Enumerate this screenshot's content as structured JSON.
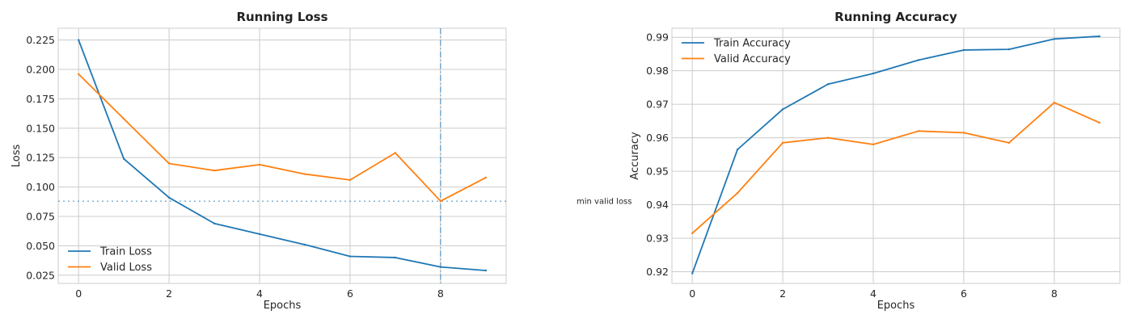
{
  "colors": {
    "train": "#1f77b4",
    "valid": "#ff7f0e",
    "grid": "#cccccc",
    "background": "#ffffff"
  },
  "chart_data": [
    {
      "type": "line",
      "title": "Running Loss",
      "xlabel": "Epochs",
      "ylabel": "Loss",
      "x": [
        0,
        1,
        2,
        3,
        4,
        5,
        6,
        7,
        8,
        9
      ],
      "xlim": [
        -0.45,
        9.45
      ],
      "ylim": [
        0.018,
        0.235
      ],
      "xticks": [
        0,
        2,
        4,
        6,
        8
      ],
      "xtick_labels": [
        "0",
        "2",
        "4",
        "6",
        "8"
      ],
      "yticks": [
        0.025,
        0.05,
        0.075,
        0.1,
        0.125,
        0.15,
        0.175,
        0.2,
        0.225
      ],
      "ytick_labels": [
        "0.025",
        "0.050",
        "0.075",
        "0.100",
        "0.125",
        "0.150",
        "0.175",
        "0.200",
        "0.225"
      ],
      "grid": true,
      "legend_position": "lower-left",
      "series": [
        {
          "name": "Train Loss",
          "color_key": "train",
          "values": [
            0.225,
            0.124,
            0.091,
            0.069,
            0.06,
            0.051,
            0.041,
            0.04,
            0.032,
            0.029
          ]
        },
        {
          "name": "Valid Loss",
          "color_key": "valid",
          "values": [
            0.196,
            0.158,
            0.12,
            0.114,
            0.119,
            0.111,
            0.106,
            0.129,
            0.088,
            0.108
          ]
        }
      ],
      "reference_lines": [
        {
          "orientation": "vertical",
          "x": 8,
          "style": "dashdot"
        },
        {
          "orientation": "horizontal",
          "y": 0.088,
          "style": "dotted"
        }
      ],
      "annotation": {
        "text": "min valid loss",
        "y": 0.088
      }
    },
    {
      "type": "line",
      "title": "Running Accuracy",
      "xlabel": "Epochs",
      "ylabel": "Accuracy",
      "x": [
        0,
        1,
        2,
        3,
        4,
        5,
        6,
        7,
        8,
        9
      ],
      "xlim": [
        -0.45,
        9.45
      ],
      "ylim": [
        0.9165,
        0.9927
      ],
      "xticks": [
        0,
        2,
        4,
        6,
        8
      ],
      "xtick_labels": [
        "0",
        "2",
        "4",
        "6",
        "8"
      ],
      "yticks": [
        0.92,
        0.93,
        0.94,
        0.95,
        0.96,
        0.97,
        0.98,
        0.99
      ],
      "ytick_labels": [
        "0.92",
        "0.93",
        "0.94",
        "0.95",
        "0.96",
        "0.97",
        "0.98",
        "0.99"
      ],
      "grid": true,
      "legend_position": "upper-left",
      "series": [
        {
          "name": "Train Accuracy",
          "color_key": "train",
          "values": [
            0.9195,
            0.9565,
            0.9685,
            0.976,
            0.9792,
            0.9832,
            0.9862,
            0.9864,
            0.9895,
            0.9903
          ]
        },
        {
          "name": "Valid Accuracy",
          "color_key": "valid",
          "values": [
            0.9315,
            0.9435,
            0.9585,
            0.96,
            0.958,
            0.962,
            0.9615,
            0.9585,
            0.9705,
            0.9645
          ]
        }
      ]
    }
  ]
}
